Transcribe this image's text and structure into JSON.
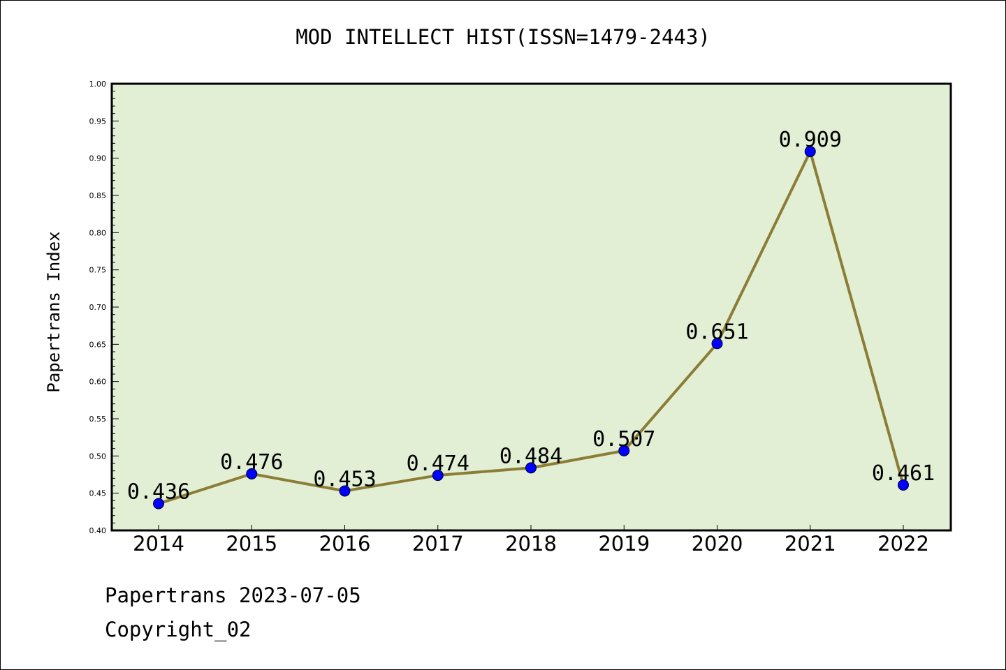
{
  "chart_data": {
    "type": "line",
    "title": "MOD INTELLECT HIST(ISSN=1479-2443)",
    "ylabel": "Papertrans Index",
    "xlabel": "",
    "categories": [
      "2014",
      "2015",
      "2016",
      "2017",
      "2018",
      "2019",
      "2020",
      "2021",
      "2022"
    ],
    "series": [
      {
        "values": [
          0.436,
          0.476,
          0.453,
          0.474,
          0.484,
          0.507,
          0.651,
          0.909,
          0.461
        ],
        "labels": [
          "0.436",
          "0.476",
          "0.453",
          "0.474",
          "0.484",
          "0.507",
          "0.651",
          "0.909",
          "0.461"
        ]
      }
    ],
    "ylim": [
      0.4,
      1.0
    ],
    "yticks": [
      "0.40",
      "0.45",
      "0.50",
      "0.55",
      "0.60",
      "0.65",
      "0.70",
      "0.75",
      "0.80",
      "0.85",
      "0.90",
      "0.95",
      "1.00"
    ],
    "grid": false,
    "legend": "none",
    "colors": {
      "plot_background": "#e2efd4",
      "line": "#8b7d35",
      "marker": "#0000ff"
    }
  },
  "footer": {
    "line1": "Papertrans 2023-07-05",
    "line2": "Copyright_02"
  }
}
